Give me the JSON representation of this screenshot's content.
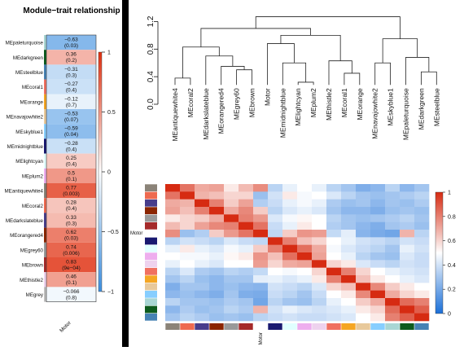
{
  "chart_data": [
    {
      "type": "heatmap",
      "title": "Module−trait relationship",
      "trait": "Motor",
      "rows": [
        {
          "module": "MEpaleturquoise",
          "color": "#a9d6d4",
          "cor": -0.63,
          "p": "(0.03)",
          "cor_label": "−0.63"
        },
        {
          "module": "MEdarkgreen",
          "color": "#0d5b1e",
          "cor": 0.36,
          "p": "(0.2)",
          "cor_label": "0.36"
        },
        {
          "module": "MEsteelblue",
          "color": "#4682b4",
          "cor": -0.31,
          "p": "(0.3)",
          "cor_label": "−0.31"
        },
        {
          "module": "MEcoral1",
          "color": "#f07060",
          "cor": -0.27,
          "p": "(0.4)",
          "cor_label": "−0.27"
        },
        {
          "module": "MEorange",
          "color": "#f5a623",
          "cor": -0.12,
          "p": "(0.7)",
          "cor_label": "−0.12"
        },
        {
          "module": "MEnavajowhite2",
          "color": "#e8c99b",
          "cor": -0.53,
          "p": "(0.07)",
          "cor_label": "−0.53"
        },
        {
          "module": "MEskyblue1",
          "color": "#87ceff",
          "cor": -0.59,
          "p": "(0.04)",
          "cor_label": "−0.59"
        },
        {
          "module": "MEmidnightblue",
          "color": "#191970",
          "cor": -0.28,
          "p": "(0.4)",
          "cor_label": "−0.28"
        },
        {
          "module": "MElightcyan",
          "color": "#e0ffff",
          "cor": 0.25,
          "p": "(0.4)",
          "cor_label": "0.25"
        },
        {
          "module": "MEplum2",
          "color": "#eeaeee",
          "cor": 0.5,
          "p": "(0.1)",
          "cor_label": "0.5"
        },
        {
          "module": "MEantiquewhite4",
          "color": "#8b8378",
          "cor": 0.77,
          "p": "(0.003)",
          "cor_label": "0.77"
        },
        {
          "module": "MEcoral2",
          "color": "#ee6a50",
          "cor": 0.28,
          "p": "(0.4)",
          "cor_label": "0.28"
        },
        {
          "module": "MEdarkslateblue",
          "color": "#483d8b",
          "cor": 0.33,
          "p": "(0.3)",
          "cor_label": "0.33"
        },
        {
          "module": "MEorangered4",
          "color": "#8b2500",
          "cor": 0.62,
          "p": "(0.03)",
          "cor_label": "0.62"
        },
        {
          "module": "MEgrey60",
          "color": "#999999",
          "cor": 0.74,
          "p": "(0.006)",
          "cor_label": "0.74"
        },
        {
          "module": "MEbrown",
          "color": "#a52a2a",
          "cor": 0.83,
          "p": "(9e−04)",
          "cor_label": "0.83"
        },
        {
          "module": "MEthistle2",
          "color": "#eed2ee",
          "cor": 0.46,
          "p": "(0.1)",
          "cor_label": "0.46"
        },
        {
          "module": "MEgrey",
          "color": "#bebebe",
          "cor": -0.066,
          "p": "(0.8)",
          "cor_label": "−0.066"
        }
      ],
      "colorbar_ticks": [
        "1",
        "0.5",
        "0",
        "−0.5",
        "−1"
      ],
      "colorbar_range": [
        -1,
        1
      ],
      "colors": {
        "negative": "#3d8fe0",
        "neutral": "#ffffff",
        "positive": "#e03010"
      }
    },
    {
      "type": "dendrogram",
      "yaxis_ticks": [
        "0.0",
        "0.4",
        "0.8",
        "1.2"
      ],
      "ylim": [
        0,
        1.3
      ],
      "leaves": [
        "MEantiquewhite4",
        "MEcoral2",
        "MEdarkslateblue",
        "MEorangered4",
        "MEgrey60",
        "MEbrown",
        "Motor",
        "MEmidnightblue",
        "MElightcyan",
        "MEplum2",
        "MEthistle2",
        "MEcoral1",
        "MEorange",
        "MEnavajowhite2",
        "MEskyblue1",
        "MEpaleturquoise",
        "MEdarkgreen",
        "MEsteelblue"
      ],
      "merges": [
        {
          "a": 0,
          "b": 1,
          "h": 0.38
        },
        {
          "a": 4,
          "b": 5,
          "h": 0.5
        },
        {
          "a": 3,
          "b": 19,
          "h": 0.55
        },
        {
          "a": 2,
          "b": 20,
          "h": 0.7
        },
        {
          "a": 18,
          "b": 21,
          "h": 0.83
        },
        {
          "a": 8,
          "b": 9,
          "h": 0.32
        },
        {
          "a": 7,
          "b": 23,
          "h": 0.6
        },
        {
          "a": 6,
          "b": 24,
          "h": 0.88
        },
        {
          "a": 11,
          "b": 12,
          "h": 0.45
        },
        {
          "a": 10,
          "b": 26,
          "h": 0.63
        },
        {
          "a": 25,
          "b": 27,
          "h": 1.0
        },
        {
          "a": 22,
          "b": 28,
          "h": 1.1
        },
        {
          "a": 13,
          "b": 14,
          "h": 0.6
        },
        {
          "a": 16,
          "b": 17,
          "h": 0.47
        },
        {
          "a": 15,
          "b": 31,
          "h": 0.68
        },
        {
          "a": 30,
          "b": 32,
          "h": 0.95
        },
        {
          "a": 29,
          "b": 33,
          "h": 1.27
        }
      ]
    },
    {
      "type": "heatmap",
      "row_label": "Motor",
      "col_label": "Motor",
      "colorbar_ticks": [
        "1",
        "0.8",
        "0.6",
        "0.4",
        "0.2",
        "0"
      ],
      "colorbar_range": [
        0,
        1
      ],
      "colors": {
        "low": "#1a6fd8",
        "mid": "#ffffff",
        "high": "#d62b12"
      },
      "order_colors": [
        "#8b8378",
        "#ee6a50",
        "#483d8b",
        "#8b2500",
        "#999999",
        "#a52a2a",
        "#ffffff",
        "#191970",
        "#e0ffff",
        "#eeaeee",
        "#eed2ee",
        "#f07060",
        "#f5a623",
        "#e8c99b",
        "#87ceff",
        "#a9d6d4",
        "#0d5b1e",
        "#4682b4"
      ],
      "matrix": [
        [
          1.0,
          0.83,
          0.7,
          0.72,
          0.55,
          0.66,
          0.77,
          0.35,
          0.45,
          0.5,
          0.45,
          0.35,
          0.3,
          0.22,
          0.25,
          0.35,
          0.25,
          0.3
        ],
        [
          0.83,
          1.0,
          0.68,
          0.65,
          0.6,
          0.6,
          0.28,
          0.4,
          0.55,
          0.48,
          0.5,
          0.42,
          0.35,
          0.3,
          0.28,
          0.3,
          0.32,
          0.35
        ],
        [
          0.7,
          0.68,
          1.0,
          0.8,
          0.62,
          0.72,
          0.33,
          0.38,
          0.45,
          0.48,
          0.45,
          0.32,
          0.28,
          0.3,
          0.25,
          0.3,
          0.28,
          0.32
        ],
        [
          0.72,
          0.65,
          0.8,
          1.0,
          0.7,
          0.78,
          0.62,
          0.35,
          0.42,
          0.45,
          0.42,
          0.3,
          0.25,
          0.25,
          0.22,
          0.28,
          0.3,
          0.28
        ],
        [
          0.55,
          0.6,
          0.62,
          0.7,
          1.0,
          0.8,
          0.74,
          0.42,
          0.48,
          0.52,
          0.5,
          0.35,
          0.3,
          0.28,
          0.3,
          0.32,
          0.35,
          0.3
        ],
        [
          0.66,
          0.6,
          0.72,
          0.78,
          0.8,
          1.0,
          0.83,
          0.38,
          0.45,
          0.55,
          0.5,
          0.33,
          0.3,
          0.25,
          0.22,
          0.3,
          0.32,
          0.28
        ],
        [
          0.77,
          0.28,
          0.33,
          0.62,
          0.74,
          0.83,
          1.0,
          0.36,
          0.62,
          0.75,
          0.73,
          0.37,
          0.44,
          0.24,
          0.21,
          0.19,
          0.68,
          0.35
        ],
        [
          0.35,
          0.4,
          0.38,
          0.35,
          0.42,
          0.38,
          0.36,
          1.0,
          0.8,
          0.65,
          0.6,
          0.5,
          0.45,
          0.4,
          0.38,
          0.35,
          0.4,
          0.38
        ],
        [
          0.45,
          0.55,
          0.45,
          0.42,
          0.48,
          0.45,
          0.62,
          0.8,
          1.0,
          0.84,
          0.7,
          0.48,
          0.42,
          0.38,
          0.35,
          0.3,
          0.45,
          0.4
        ],
        [
          0.5,
          0.48,
          0.48,
          0.45,
          0.52,
          0.55,
          0.75,
          0.65,
          0.84,
          1.0,
          0.72,
          0.5,
          0.45,
          0.35,
          0.3,
          0.28,
          0.42,
          0.38
        ],
        [
          0.45,
          0.5,
          0.45,
          0.42,
          0.5,
          0.5,
          0.73,
          0.6,
          0.7,
          0.72,
          1.0,
          0.6,
          0.55,
          0.42,
          0.38,
          0.35,
          0.4,
          0.38
        ],
        [
          0.35,
          0.42,
          0.32,
          0.3,
          0.35,
          0.33,
          0.37,
          0.5,
          0.48,
          0.5,
          0.6,
          1.0,
          0.8,
          0.6,
          0.5,
          0.45,
          0.42,
          0.4
        ],
        [
          0.3,
          0.35,
          0.28,
          0.25,
          0.3,
          0.3,
          0.44,
          0.45,
          0.42,
          0.45,
          0.55,
          0.8,
          1.0,
          0.65,
          0.55,
          0.5,
          0.45,
          0.42
        ],
        [
          0.22,
          0.3,
          0.3,
          0.25,
          0.28,
          0.25,
          0.24,
          0.4,
          0.38,
          0.35,
          0.42,
          0.6,
          0.65,
          1.0,
          0.78,
          0.62,
          0.55,
          0.5
        ],
        [
          0.25,
          0.28,
          0.25,
          0.22,
          0.3,
          0.22,
          0.21,
          0.38,
          0.35,
          0.3,
          0.38,
          0.5,
          0.55,
          0.78,
          1.0,
          0.7,
          0.6,
          0.55
        ],
        [
          0.35,
          0.3,
          0.3,
          0.28,
          0.32,
          0.3,
          0.19,
          0.35,
          0.3,
          0.28,
          0.35,
          0.45,
          0.5,
          0.62,
          0.7,
          1.0,
          0.85,
          0.8
        ],
        [
          0.25,
          0.32,
          0.28,
          0.3,
          0.35,
          0.32,
          0.68,
          0.4,
          0.45,
          0.42,
          0.4,
          0.42,
          0.45,
          0.55,
          0.6,
          0.85,
          1.0,
          0.88
        ],
        [
          0.3,
          0.35,
          0.32,
          0.28,
          0.3,
          0.28,
          0.35,
          0.38,
          0.4,
          0.38,
          0.38,
          0.4,
          0.42,
          0.5,
          0.55,
          0.8,
          0.88,
          1.0
        ]
      ]
    }
  ]
}
